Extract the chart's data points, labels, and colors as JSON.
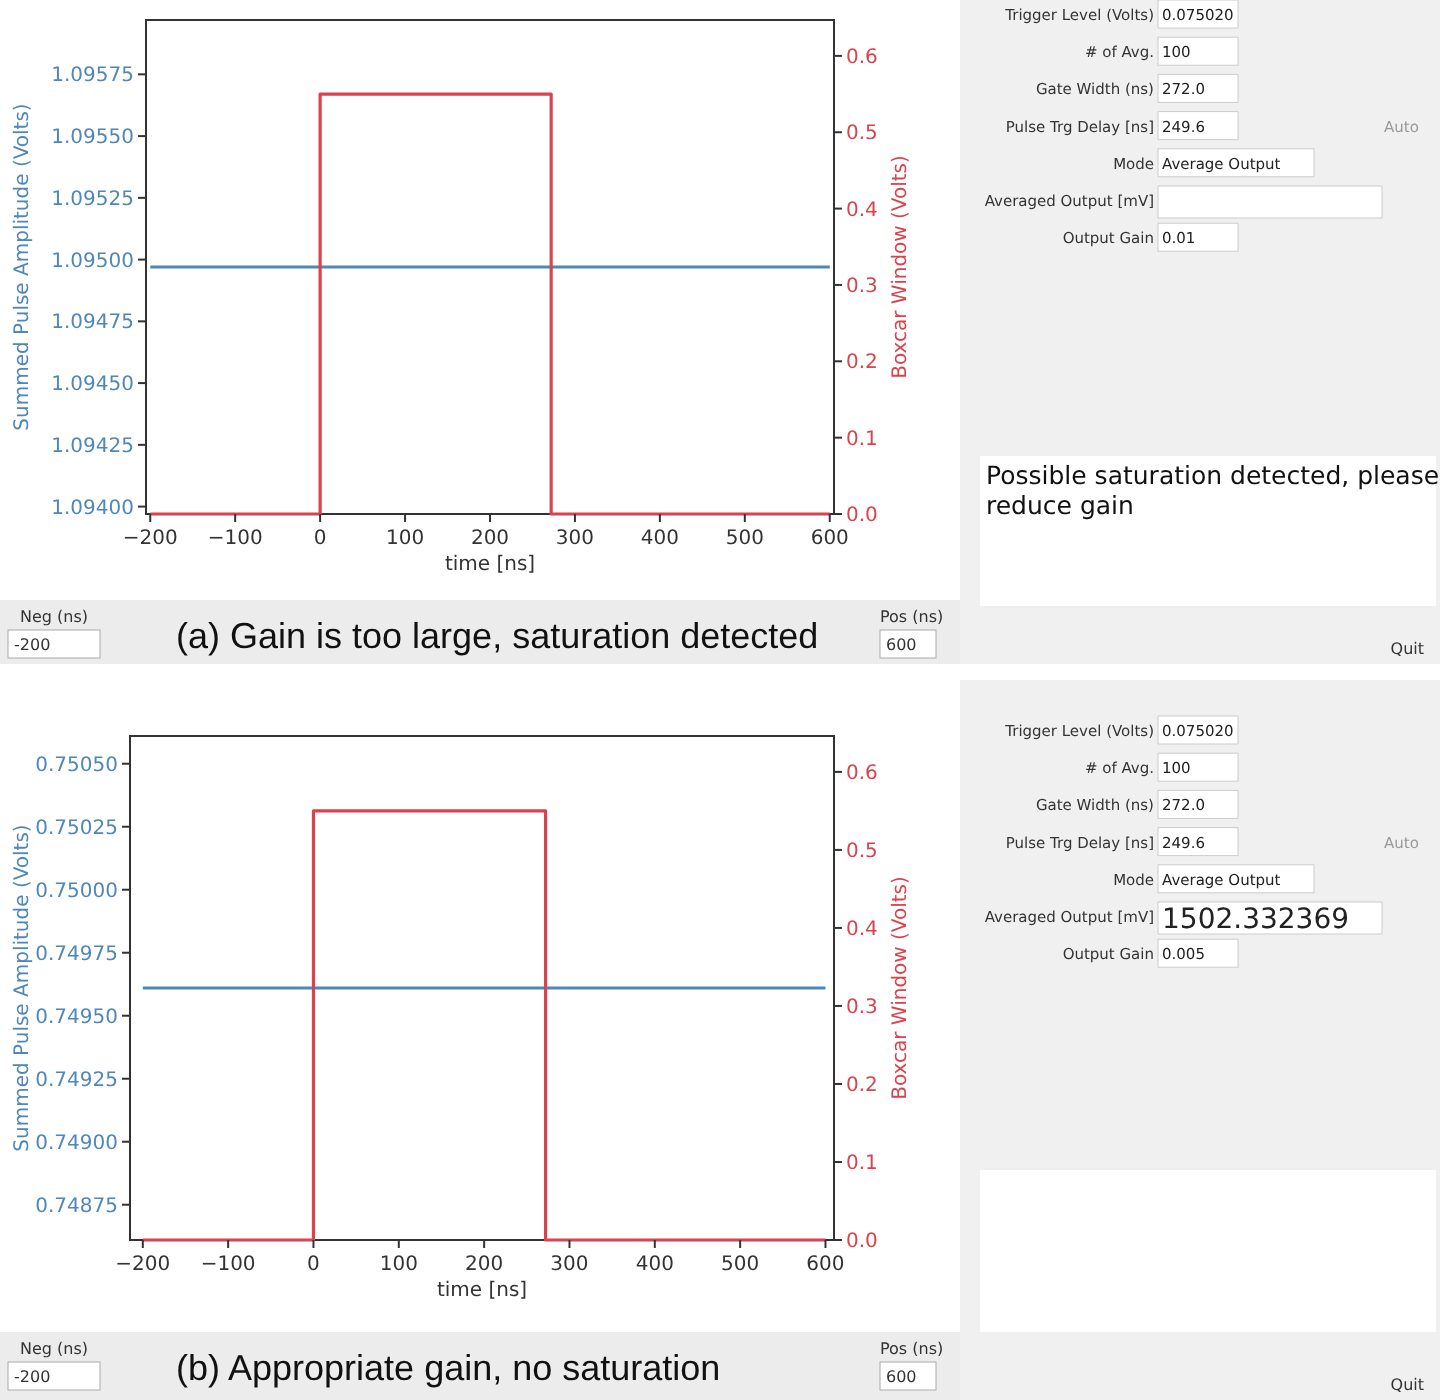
{
  "chart_data": [
    {
      "type": "line",
      "xlabel": "time [ns]",
      "ylabel": "Summed Pulse Amplitude (Volts)",
      "y2label": "Boxcar Window (Volts)",
      "xlim": [
        -205,
        605
      ],
      "xticks": [
        -200,
        -100,
        0,
        100,
        200,
        300,
        400,
        500,
        600
      ],
      "ylim": [
        1.09397,
        1.09597
      ],
      "yticks": [
        {
          "value": 1.094,
          "label": "1.09400"
        },
        1.09425,
        {
          "value": 1.0945,
          "label": "1.09450"
        },
        1.09475,
        {
          "value": 1.095,
          "label": "1.09500"
        },
        1.09525,
        {
          "value": 1.0955,
          "label": "1.09550"
        },
        1.09575
      ],
      "y2lim": [
        0,
        0.647
      ],
      "y2ticks": [
        {
          "value": 0,
          "label": "0.0"
        },
        0.1,
        0.2,
        0.3,
        0.4,
        0.5,
        0.6
      ],
      "series": [
        {
          "type": "line",
          "color": "#4f87b8",
          "x": [
            -200,
            600
          ],
          "values": [
            1.09497,
            1.09497
          ]
        },
        {
          "type": "step",
          "axis": "y2",
          "color": "#d9434e",
          "x": [
            -200,
            0,
            272,
            600
          ],
          "values": [
            0,
            0.55,
            0,
            0
          ]
        }
      ],
      "annotations": [
        "Neg (ns)",
        "-200",
        "(a) Gain is too large, saturation detected",
        "Pos (ns)",
        "600"
      ]
    },
    {
      "type": "other",
      "categories": [
        "Trigger Level (Volts)",
        "# of Avg.",
        "Gate Width (ns)",
        "Pulse Trg Delay [ns]",
        "Mode",
        "Averaged Output [mV]",
        "Output Gain"
      ],
      "value_labels": [
        "0.075020",
        "100",
        "272.0",
        "249.6",
        "Average Output",
        null,
        "0.01"
      ],
      "subtitle": "Possible saturation detected, please reduce gain",
      "annotations": [
        "Auto",
        "Quit"
      ]
    },
    {
      "type": "line",
      "xlabel": "time [ns]",
      "ylabel": "Summed Pulse Amplitude (Volts)",
      "y2label": "Boxcar Window (Volts)",
      "xlim": [
        -215,
        610
      ],
      "xticks": [
        -200,
        -100,
        0,
        100,
        200,
        300,
        400,
        500,
        600
      ],
      "ylim": [
        0.74861,
        0.75061
      ],
      "yticks": [
        0.74875,
        {
          "value": 0.749,
          "label": "0.74900"
        },
        0.74925,
        {
          "value": 0.7495,
          "label": "0.74950"
        },
        0.74975,
        {
          "value": 0.75,
          "label": "0.75000"
        },
        0.75025,
        {
          "value": 0.7505,
          "label": "0.75050"
        }
      ],
      "y2lim": [
        0,
        0.646
      ],
      "y2ticks": [
        {
          "value": 0,
          "label": "0.0"
        },
        0.1,
        0.2,
        0.3,
        0.4,
        0.5,
        0.6
      ],
      "series": [
        {
          "type": "line",
          "color": "#4f87b8",
          "x": [
            -200,
            600
          ],
          "values": [
            0.74961,
            0.74961
          ]
        },
        {
          "type": "step",
          "axis": "y2",
          "color": "#d9434e",
          "x": [
            -200,
            0,
            272,
            600
          ],
          "values": [
            0,
            0.55,
            0,
            0
          ]
        }
      ],
      "annotations": [
        "Neg (ns)",
        "-200",
        "(b) Appropriate gain, no saturation",
        "Pos (ns)",
        "600"
      ]
    },
    {
      "type": "other",
      "categories": [
        "Trigger Level (Volts)",
        "# of Avg.",
        "Gate Width (ns)",
        "Pulse Trg Delay [ns]",
        "Mode",
        "Averaged Output [mV]",
        "Output Gain"
      ],
      "value_labels": [
        "0.075020",
        "100",
        "272.0",
        "249.6",
        "Average Output",
        "1502.332369",
        "0.005"
      ],
      "annotations": [
        "Auto",
        "Quit"
      ]
    }
  ]
}
